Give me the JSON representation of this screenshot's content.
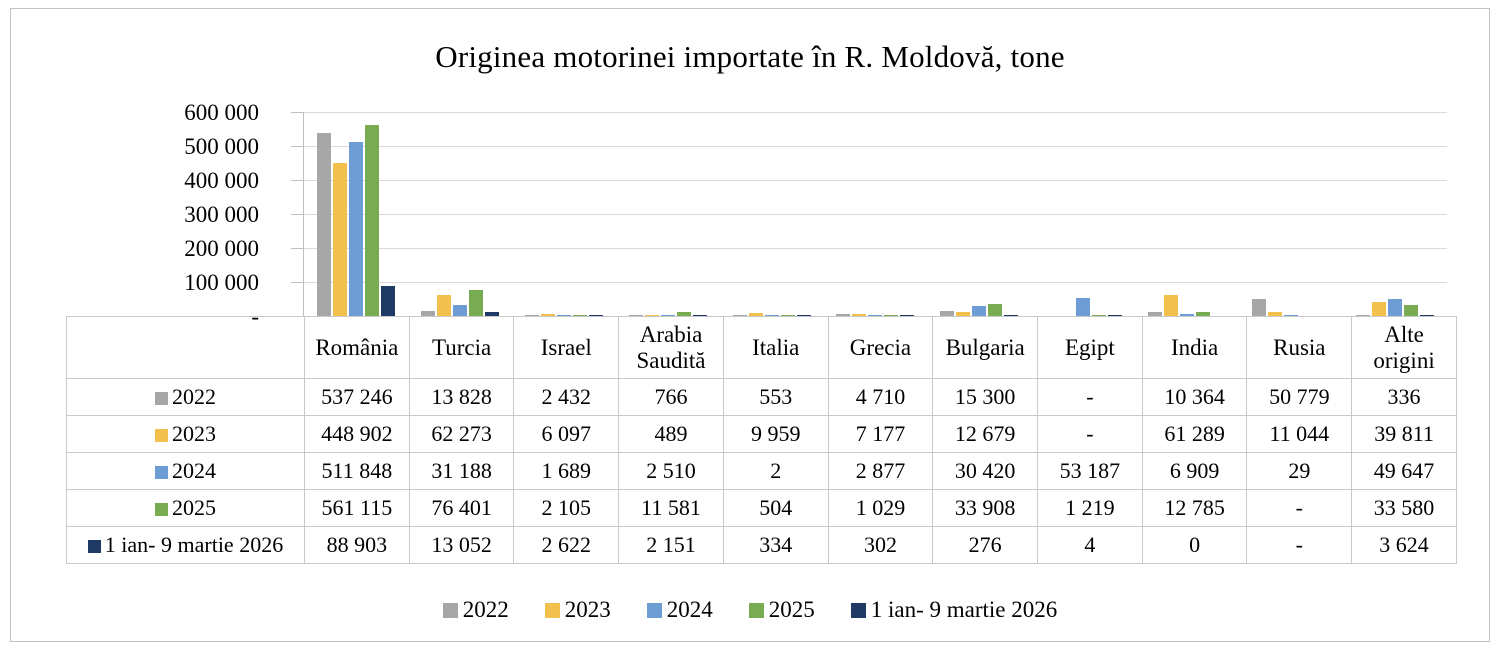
{
  "chart_data": {
    "type": "bar",
    "title": "Originea motorinei importate în R. Moldovă, tone",
    "unit": "tone",
    "categories": [
      "România",
      "Turcia",
      "Israel",
      "Arabia Saudită",
      "Italia",
      "Grecia",
      "Bulgaria",
      "Egipt",
      "India",
      "Rusia",
      "Alte origini"
    ],
    "series": [
      {
        "name": "2022",
        "color": "#a7a7a7",
        "values": [
          537246,
          13828,
          2432,
          766,
          553,
          4710,
          15300,
          null,
          10364,
          50779,
          336
        ]
      },
      {
        "name": "2023",
        "color": "#f2c04c",
        "values": [
          448902,
          62273,
          6097,
          489,
          9959,
          7177,
          12679,
          null,
          61289,
          11044,
          39811
        ]
      },
      {
        "name": "2024",
        "color": "#6d9dd4",
        "values": [
          511848,
          31188,
          1689,
          2510,
          2,
          2877,
          30420,
          53187,
          6909,
          29,
          49647
        ]
      },
      {
        "name": "2025",
        "color": "#78ab52",
        "values": [
          561115,
          76401,
          2105,
          11581,
          504,
          1029,
          33908,
          1219,
          12785,
          null,
          33580
        ]
      },
      {
        "name": "1 ian- 9 martie 2026",
        "color": "#203a66",
        "values": [
          88903,
          13052,
          2622,
          2151,
          334,
          302,
          276,
          4,
          0,
          null,
          3624
        ]
      }
    ],
    "ylim": [
      0,
      600000
    ],
    "y_ticks": [
      {
        "label": "600 000",
        "value": 600000
      },
      {
        "label": "500 000",
        "value": 500000
      },
      {
        "label": "400 000",
        "value": 400000
      },
      {
        "label": "300 000",
        "value": 300000
      },
      {
        "label": "200 000",
        "value": 200000
      },
      {
        "label": "100 000",
        "value": 100000
      },
      {
        "label": "-",
        "value": 0
      }
    ],
    "grid": true,
    "legend_position": "bottom"
  },
  "table": {
    "corner_label": "",
    "column_headers": [
      "România",
      "Turcia",
      "Israel",
      "Arabia Saudită",
      "Italia",
      "Grecia",
      "Bulgaria",
      "Egipt",
      "India",
      "Rusia",
      "Alte origini"
    ],
    "rows": [
      {
        "label": "2022",
        "swatch_color": "#a7a7a7",
        "cells": [
          "537 246",
          "13 828",
          "2 432",
          "766",
          "553",
          "4 710",
          "15 300",
          "-",
          "10 364",
          "50 779",
          "336"
        ]
      },
      {
        "label": "2023",
        "swatch_color": "#f2c04c",
        "cells": [
          "448 902",
          "62 273",
          "6 097",
          "489",
          "9 959",
          "7 177",
          "12 679",
          "-",
          "61 289",
          "11 044",
          "39 811"
        ]
      },
      {
        "label": "2024",
        "swatch_color": "#6d9dd4",
        "cells": [
          "511 848",
          "31 188",
          "1 689",
          "2 510",
          "2",
          "2 877",
          "30 420",
          "53 187",
          "6 909",
          "29",
          "49 647"
        ]
      },
      {
        "label": "2025",
        "swatch_color": "#78ab52",
        "cells": [
          "561 115",
          "76 401",
          "2 105",
          "11 581",
          "504",
          "1 029",
          "33 908",
          "1 219",
          "12 785",
          "-",
          "33 580"
        ]
      },
      {
        "label": "1 ian- 9 martie 2026",
        "swatch_color": "#203a66",
        "cells": [
          "88 903",
          "13 052",
          "2 622",
          "2 151",
          "334",
          "302",
          "276",
          "4",
          "0",
          "-",
          "3 624"
        ]
      }
    ]
  },
  "legend": {
    "items": [
      {
        "label": "2022",
        "color": "#a7a7a7"
      },
      {
        "label": "2023",
        "color": "#f2c04c"
      },
      {
        "label": "2024",
        "color": "#6d9dd4"
      },
      {
        "label": "2025",
        "color": "#78ab52"
      },
      {
        "label": "1 ian- 9 martie 2026",
        "color": "#203a66"
      }
    ]
  },
  "colors": {
    "gridline": "#d9d9d9",
    "axis": "#bfbfbf",
    "table_border": "#c9c9c9",
    "frame_border": "#c3c3c3",
    "background": "#ffffff"
  }
}
